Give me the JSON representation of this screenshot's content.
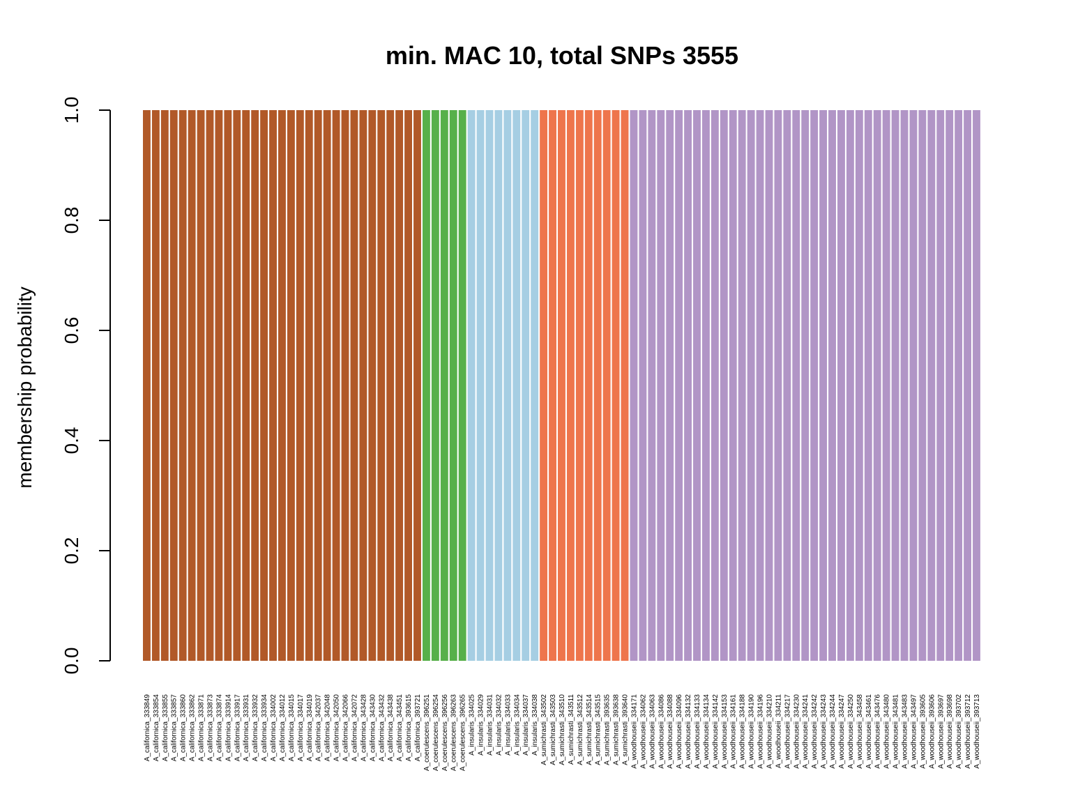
{
  "chart_data": {
    "type": "bar",
    "stacked": true,
    "title": "min. MAC 10, total SNPs 3555",
    "xlabel": "",
    "ylabel": "membership probability",
    "ylim": [
      0,
      1
    ],
    "yticks": [
      "0.0",
      "0.2",
      "0.4",
      "0.6",
      "0.8",
      "1.0"
    ],
    "grid": false,
    "legend": "none",
    "colors": {
      "californica": "#b15928",
      "coerulescens": "#57b04a",
      "insularis": "#a6cee3",
      "sumichrasti": "#ee754c",
      "woodhouseii": "#b195c6"
    },
    "categories": [
      "A_californica_333849",
      "A_californica_333854",
      "A_californica_333855",
      "A_californica_333857",
      "A_californica_333860",
      "A_californica_333862",
      "A_californica_333871",
      "A_californica_333873",
      "A_californica_333874",
      "A_californica_333914",
      "A_californica_333917",
      "A_californica_333931",
      "A_californica_333932",
      "A_californica_333934",
      "A_californica_334002",
      "A_californica_334012",
      "A_californica_334015",
      "A_californica_334017",
      "A_californica_334019",
      "A_californica_342037",
      "A_californica_342048",
      "A_californica_342050",
      "A_californica_342066",
      "A_californica_342072",
      "A_californica_343428",
      "A_californica_343430",
      "A_californica_343432",
      "A_californica_343438",
      "A_californica_343451",
      "A_californica_393615",
      "A_californica_393721",
      "A_coerulescens_396251",
      "A_coerulescens_396254",
      "A_coerulescens_396256",
      "A_coerulescens_396263",
      "A_coerulescens_396265",
      "A_insularis_334025",
      "A_insularis_334029",
      "A_insularis_334031",
      "A_insularis_334032",
      "A_insularis_334033",
      "A_insularis_334034",
      "A_insularis_334037",
      "A_insularis_334038",
      "A_sumichrasti_343502",
      "A_sumichrasti_343503",
      "A_sumichrasti_343510",
      "A_sumichrasti_343511",
      "A_sumichrasti_343512",
      "A_sumichrasti_343514",
      "A_sumichrasti_343515",
      "A_sumichrasti_393635",
      "A_sumichrasti_393638",
      "A_sumichrasti_393640",
      "A_woodhouseii_334171",
      "A_woodhouseii_334062",
      "A_woodhouseii_334063",
      "A_woodhouseii_334086",
      "A_woodhouseii_334088",
      "A_woodhouseii_334096",
      "A_woodhouseii_334132",
      "A_woodhouseii_334133",
      "A_woodhouseii_334134",
      "A_woodhouseii_334142",
      "A_woodhouseii_334153",
      "A_woodhouseii_334161",
      "A_woodhouseii_334188",
      "A_woodhouseii_334190",
      "A_woodhouseii_334196",
      "A_woodhouseii_334210",
      "A_woodhouseii_334211",
      "A_woodhouseii_334217",
      "A_woodhouseii_334230",
      "A_woodhouseii_334241",
      "A_woodhouseii_334242",
      "A_woodhouseii_334243",
      "A_woodhouseii_334244",
      "A_woodhouseii_334247",
      "A_woodhouseii_334250",
      "A_woodhouseii_343458",
      "A_woodhouseii_343461",
      "A_woodhouseii_343476",
      "A_woodhouseii_343480",
      "A_woodhouseii_343481",
      "A_woodhouseii_343483",
      "A_woodhouseii_343497",
      "A_woodhouseii_393605",
      "A_woodhouseii_393606",
      "A_woodhouseii_393697",
      "A_woodhouseii_393698",
      "A_woodhouseii_393702",
      "A_woodhouseii_393712",
      "A_woodhouseii_393713"
    ],
    "groups": [
      {
        "color_key": "californica",
        "count": 31
      },
      {
        "color_key": "coerulescens",
        "count": 5
      },
      {
        "color_key": "insularis",
        "count": 8
      },
      {
        "color_key": "sumichrasti",
        "count": 10
      },
      {
        "color_key": "woodhouseii",
        "count": 39
      }
    ],
    "value_per_bar": 1.0
  }
}
